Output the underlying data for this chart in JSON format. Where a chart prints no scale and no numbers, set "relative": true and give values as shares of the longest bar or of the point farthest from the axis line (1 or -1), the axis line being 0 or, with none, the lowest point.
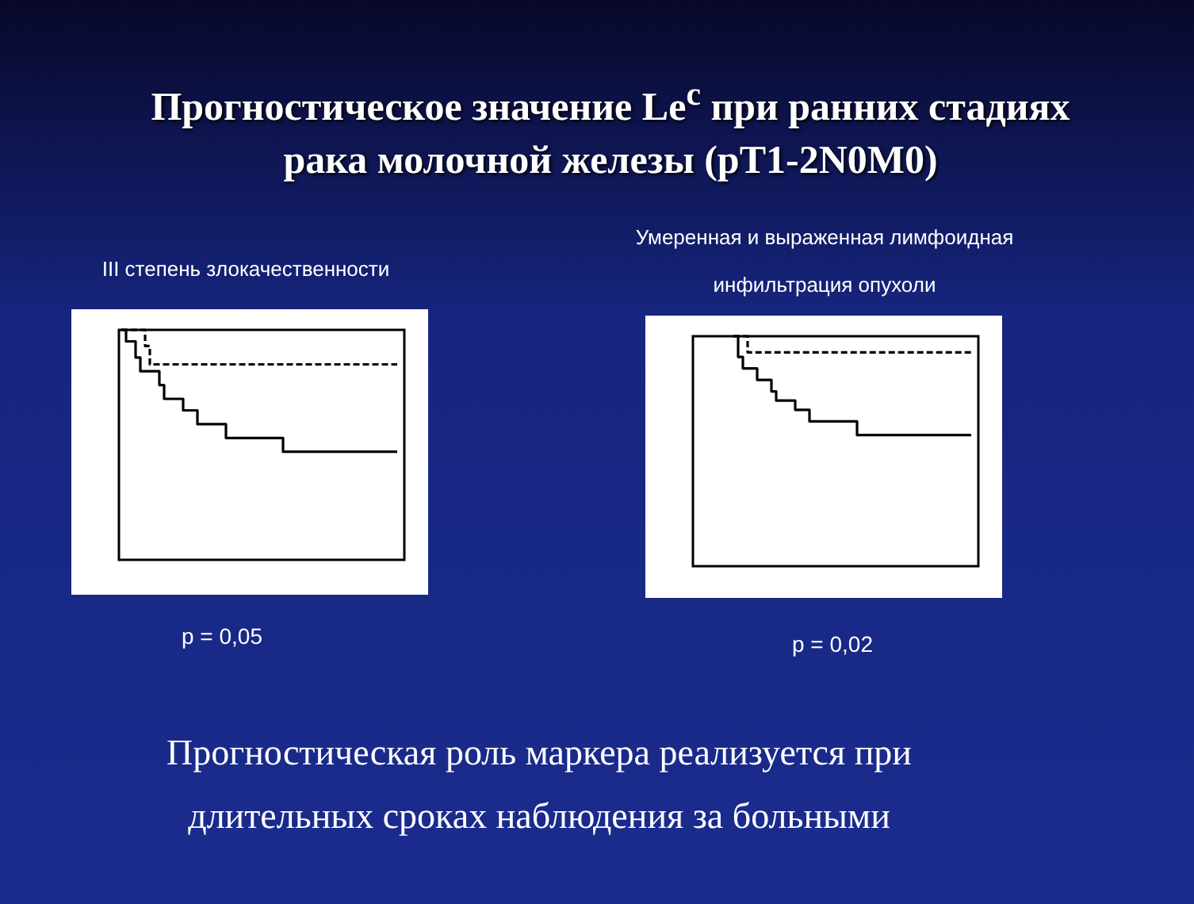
{
  "chart_data": [
    {
      "type": "other",
      "title": "Прогностическое значение Le$^{c}$ при ранних стадиях рака молочной железы (pT1-2N0M0)",
      "annotations": [
        "Прогностическая роль маркера реализуется при длительных сроках наблюдения за больными"
      ]
    },
    {
      "type": "step",
      "title": "III степень злокачественности",
      "relative": true,
      "tick_labels": false,
      "annotations": [
        "p = 0,05"
      ],
      "categories": [
        null,
        null,
        null,
        null,
        null,
        null,
        null,
        null,
        null,
        null,
        null,
        null,
        null,
        null,
        null,
        null,
        null,
        null,
        null,
        null,
        null,
        null,
        null,
        null,
        null,
        null,
        null,
        null,
        null,
        null,
        null,
        null,
        null,
        null,
        null,
        null,
        null,
        null,
        null,
        null,
        null,
        null,
        null,
        null,
        null,
        null,
        null,
        null,
        null,
        null,
        null,
        null,
        null,
        null,
        null,
        null,
        null,
        null,
        null,
        null
      ],
      "series": [
        {
          "color": "#000000",
          "line_style": "solid",
          "values": [
            1.0,
            0.95,
            0.95,
            0.88,
            0.82,
            0.82,
            0.82,
            0.82,
            0.76,
            0.7,
            0.7,
            0.7,
            0.7,
            0.65,
            0.65,
            0.65,
            0.59,
            0.59,
            0.59,
            0.59,
            0.59,
            0.59,
            0.53,
            0.53,
            0.53,
            0.53,
            0.53,
            0.53,
            0.53,
            0.53,
            0.53,
            0.53,
            0.53,
            0.53,
            0.47,
            0.47,
            0.47,
            0.47,
            0.47,
            0.47,
            0.47,
            0.47,
            0.47,
            0.47,
            0.47,
            0.47,
            0.47,
            0.47,
            0.47,
            0.47,
            0.47,
            0.47,
            0.47,
            0.47,
            0.47,
            0.47,
            0.47,
            0.47,
            0.47,
            null
          ]
        },
        {
          "color": "#000000",
          "line_style": "dashed",
          "values": [
            1.0,
            1.0,
            1.0,
            1.0,
            1.0,
            0.93,
            0.85,
            0.85,
            0.85,
            0.85,
            0.85,
            0.85,
            0.85,
            0.85,
            0.85,
            0.85,
            0.85,
            0.85,
            0.85,
            0.85,
            0.85,
            0.85,
            0.85,
            0.85,
            0.85,
            0.85,
            0.85,
            0.85,
            0.85,
            0.85,
            0.85,
            0.85,
            0.85,
            0.85,
            0.85,
            0.85,
            0.85,
            0.85,
            0.85,
            0.85,
            0.85,
            0.85,
            0.85,
            0.85,
            0.85,
            0.85,
            0.85,
            0.85,
            0.85,
            0.85,
            0.85,
            0.85,
            0.85,
            0.85,
            0.85,
            0.85,
            0.85,
            0.85,
            0.85,
            null
          ]
        }
      ]
    },
    {
      "type": "step",
      "title": "Умеренная и выраженная лимфоидная инфильтрация опухоли",
      "relative": true,
      "tick_labels": false,
      "annotations": [
        "p = 0,02"
      ],
      "categories": [
        null,
        null,
        null,
        null,
        null,
        null,
        null,
        null,
        null,
        null,
        null,
        null,
        null,
        null,
        null,
        null,
        null,
        null,
        null,
        null,
        null,
        null,
        null,
        null,
        null,
        null,
        null,
        null,
        null,
        null,
        null,
        null,
        null,
        null,
        null,
        null,
        null,
        null,
        null,
        null,
        null,
        null,
        null,
        null,
        null,
        null,
        null,
        null,
        null,
        null,
        null,
        null,
        null,
        null,
        null,
        null,
        null,
        null,
        null,
        null
      ],
      "series": [
        {
          "color": "#000000",
          "line_style": "solid",
          "values": [
            null,
            null,
            null,
            null,
            null,
            null,
            null,
            null,
            1.0,
            0.91,
            0.86,
            0.86,
            0.86,
            0.81,
            0.81,
            0.81,
            0.76,
            0.72,
            0.72,
            0.72,
            0.72,
            0.68,
            0.68,
            0.68,
            0.63,
            0.63,
            0.63,
            0.63,
            0.63,
            0.63,
            0.63,
            0.63,
            0.63,
            0.63,
            0.57,
            0.57,
            0.57,
            0.57,
            0.57,
            0.57,
            0.57,
            0.57,
            0.57,
            0.57,
            0.57,
            0.57,
            0.57,
            0.57,
            0.57,
            0.57,
            0.57,
            0.57,
            0.57,
            0.57,
            0.57,
            0.57,
            0.57,
            0.57,
            0.57,
            null
          ]
        },
        {
          "color": "#000000",
          "line_style": "dashed",
          "values": [
            null,
            null,
            null,
            null,
            null,
            null,
            null,
            null,
            1.0,
            1.0,
            1.0,
            0.93,
            0.93,
            0.93,
            0.93,
            0.93,
            0.93,
            0.93,
            0.93,
            0.93,
            0.93,
            0.93,
            0.93,
            0.93,
            0.93,
            0.93,
            0.93,
            0.93,
            0.93,
            0.93,
            0.93,
            0.93,
            0.93,
            0.93,
            0.93,
            0.93,
            0.93,
            0.93,
            0.93,
            0.93,
            0.93,
            0.93,
            0.93,
            0.93,
            0.93,
            0.93,
            0.93,
            0.93,
            0.93,
            0.93,
            0.93,
            0.93,
            0.93,
            0.93,
            0.93,
            0.93,
            0.93,
            0.93,
            0.93,
            null
          ]
        }
      ]
    }
  ]
}
